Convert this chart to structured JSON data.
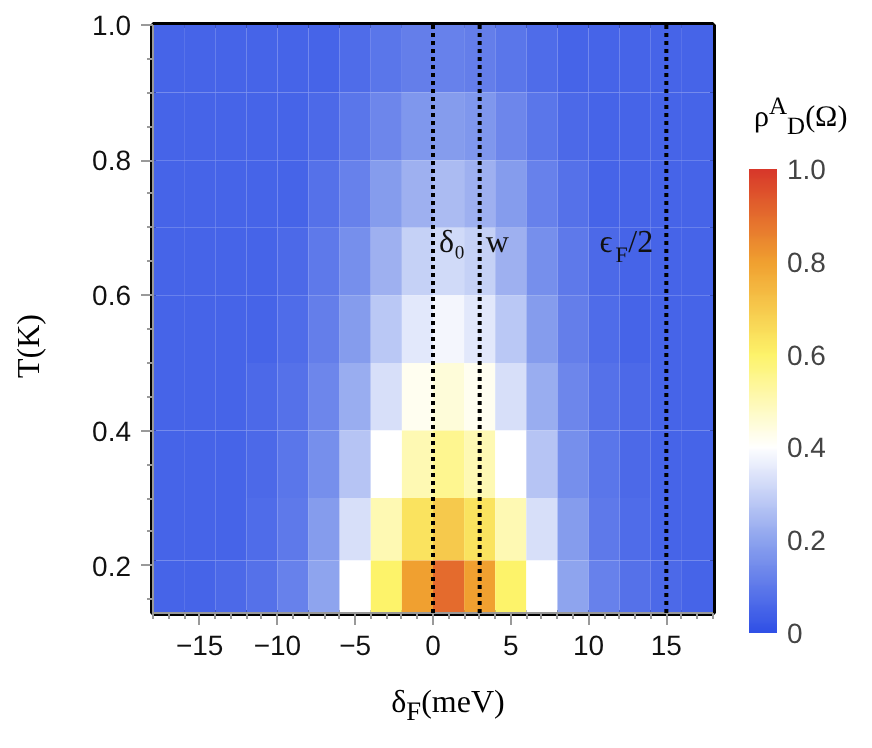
{
  "chart_data": {
    "type": "heatmap",
    "xlabel": "δ$_{F}$(meV)",
    "ylabel": "T(K)",
    "clabel": "ρ$^{A}$$_{D}$(Ω)",
    "x": [
      -17,
      -15,
      -13,
      -11,
      -9,
      -7,
      -5,
      -3,
      -1,
      1,
      3,
      5,
      7,
      9,
      11,
      13,
      15,
      17
    ],
    "y": [
      0.95,
      0.85,
      0.75,
      0.65,
      0.55,
      0.45,
      0.35,
      0.25,
      0.165
    ],
    "cells": [
      [
        0.05,
        0.05,
        0.05,
        0.05,
        0.05,
        0.05,
        0.07,
        0.09,
        0.11,
        0.12,
        0.11,
        0.09,
        0.07,
        0.05,
        0.05,
        0.05,
        0.05,
        0.05
      ],
      [
        0.05,
        0.05,
        0.05,
        0.05,
        0.05,
        0.06,
        0.09,
        0.13,
        0.17,
        0.18,
        0.17,
        0.13,
        0.09,
        0.06,
        0.05,
        0.05,
        0.05,
        0.05
      ],
      [
        0.05,
        0.05,
        0.05,
        0.05,
        0.05,
        0.08,
        0.12,
        0.18,
        0.23,
        0.25,
        0.23,
        0.18,
        0.12,
        0.08,
        0.05,
        0.05,
        0.05,
        0.05
      ],
      [
        0.05,
        0.05,
        0.05,
        0.05,
        0.06,
        0.1,
        0.15,
        0.23,
        0.3,
        0.32,
        0.3,
        0.23,
        0.15,
        0.1,
        0.06,
        0.05,
        0.05,
        0.05
      ],
      [
        0.05,
        0.05,
        0.05,
        0.05,
        0.07,
        0.11,
        0.18,
        0.28,
        0.35,
        0.38,
        0.35,
        0.28,
        0.18,
        0.11,
        0.07,
        0.05,
        0.05,
        0.05
      ],
      [
        0.05,
        0.05,
        0.05,
        0.06,
        0.08,
        0.13,
        0.22,
        0.33,
        0.42,
        0.45,
        0.42,
        0.33,
        0.22,
        0.13,
        0.08,
        0.06,
        0.05,
        0.05
      ],
      [
        0.05,
        0.05,
        0.05,
        0.06,
        0.09,
        0.15,
        0.27,
        0.4,
        0.5,
        0.55,
        0.5,
        0.4,
        0.27,
        0.15,
        0.09,
        0.06,
        0.05,
        0.05
      ],
      [
        0.05,
        0.05,
        0.05,
        0.07,
        0.1,
        0.18,
        0.33,
        0.5,
        0.64,
        0.7,
        0.64,
        0.5,
        0.33,
        0.18,
        0.1,
        0.07,
        0.05,
        0.05
      ],
      [
        0.05,
        0.05,
        0.06,
        0.08,
        0.12,
        0.2,
        0.4,
        0.6,
        0.8,
        0.9,
        0.8,
        0.6,
        0.4,
        0.2,
        0.12,
        0.08,
        0.06,
        0.05
      ]
    ],
    "colors": [
      "#3050e6",
      "#8ea4ee",
      "#ffffff",
      "#fdf36a",
      "#f0a030",
      "#d8382a"
    ],
    "clim": [
      0,
      1
    ],
    "cticks": [
      {
        "value": 0,
        "label": "0"
      },
      0.2,
      0.4,
      0.6,
      0.8,
      {
        "value": 1,
        "label": "1.0"
      }
    ],
    "xlim": [
      -18,
      18
    ],
    "xticks": [
      -15,
      -10,
      -5,
      0,
      5,
      10,
      15
    ],
    "ylim": [
      0.13,
      1.0
    ],
    "yticks": [
      0.2,
      0.4,
      0.6,
      0.8,
      {
        "value": 1.0,
        "label": "1.0"
      }
    ],
    "ref_lines": [
      {
        "axis": "x",
        "value": 0,
        "label": "δ₀",
        "line_style": "dotted",
        "color": "#000000"
      },
      {
        "axis": "x",
        "value": 3,
        "label": "w",
        "line_style": "dotted",
        "color": "#000000"
      },
      {
        "axis": "x",
        "value": 15,
        "label": "ϵ$_{F}$/2",
        "line_style": "dotted",
        "color": "#000000"
      }
    ]
  }
}
